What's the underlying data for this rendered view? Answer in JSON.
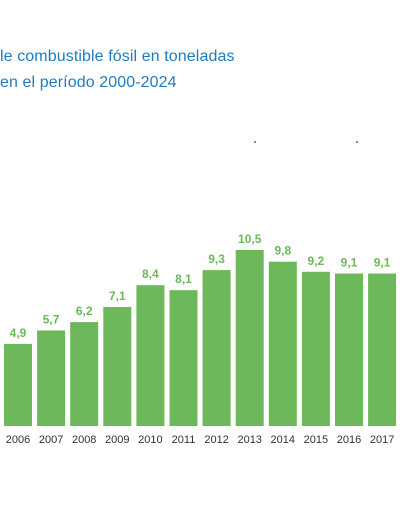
{
  "chart_data": {
    "type": "bar",
    "title_lines": [
      "le combustible fósil en toneladas",
      "en el período 2000-2024"
    ],
    "categories": [
      "2006",
      "2007",
      "2008",
      "2009",
      "2010",
      "2011",
      "2012",
      "2013",
      "2014",
      "2015",
      "2016",
      "2017"
    ],
    "values": [
      4.9,
      5.7,
      6.2,
      7.1,
      8.4,
      8.1,
      9.3,
      10.5,
      9.8,
      9.2,
      9.1,
      9.1
    ],
    "value_labels": [
      "4,9",
      "5,7",
      "6,2",
      "7,1",
      "8,4",
      "8,1",
      "9,3",
      "10,5",
      "9,8",
      "9,2",
      "9,1",
      "9,1"
    ],
    "ylim": [
      0,
      10.5
    ],
    "grid": false,
    "colors": {
      "bar": "#6db85a",
      "title": "#1f7bc2"
    }
  }
}
